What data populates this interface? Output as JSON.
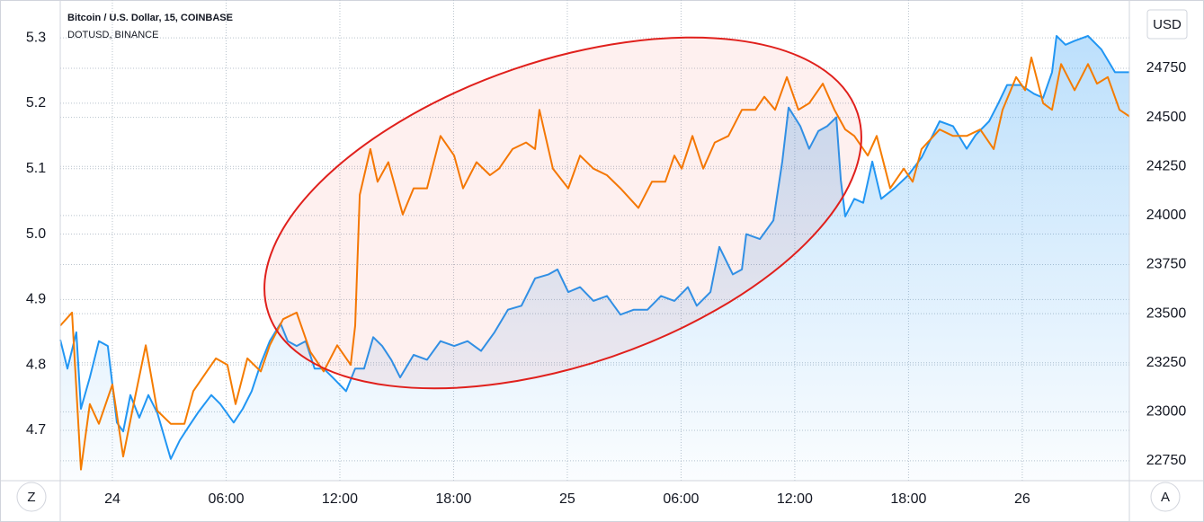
{
  "chart_data": {
    "type": "line",
    "legend": [
      "Bitcoin / U.S. Dollar, 15, COINBASE",
      "DOTUSD, BINANCE"
    ],
    "currency": "USD",
    "left_button": "Z",
    "right_button": "A",
    "xlim": [
      -2.75,
      53.65
    ],
    "xticks": [
      {
        "value": 0,
        "label": "24"
      },
      {
        "value": 6,
        "label": "06:00"
      },
      {
        "value": 12,
        "label": "12:00"
      },
      {
        "value": 18,
        "label": "18:00"
      },
      {
        "value": 24,
        "label": "25"
      },
      {
        "value": 30,
        "label": "06:00"
      },
      {
        "value": 36,
        "label": "12:00"
      },
      {
        "value": 42,
        "label": "18:00"
      },
      {
        "value": 48,
        "label": "26"
      }
    ],
    "ylim": [
      4.623,
      5.351
    ],
    "yticks": [
      4.7,
      4.8,
      4.9,
      {
        "value": 5,
        "label": "5.0"
      },
      5.1,
      5.2,
      5.3
    ],
    "y2lim": [
      22649,
      25075
    ],
    "y2ticks": [
      22750,
      23000,
      23250,
      23500,
      23750,
      24000,
      24250,
      24500,
      24750
    ],
    "grid": true,
    "series": [
      {
        "name": "Bitcoin / U.S. Dollar, 15, COINBASE",
        "color": "#2196f3",
        "axis": "y2",
        "area": true,
        "x": [
          -2.75,
          -2.37,
          -1.9,
          -1.66,
          -1.19,
          -0.71,
          -0.24,
          0.24,
          0.57,
          0.95,
          1.42,
          1.9,
          2.37,
          3.08,
          3.56,
          4.03,
          4.51,
          5.22,
          5.69,
          6.4,
          6.88,
          7.35,
          7.83,
          8.3,
          8.87,
          9.25,
          9.72,
          10.2,
          10.67,
          11.15,
          11.62,
          12.33,
          12.81,
          13.28,
          13.76,
          14.23,
          14.71,
          15.18,
          15.89,
          16.6,
          17.31,
          18.03,
          18.74,
          19.45,
          20.16,
          20.87,
          21.58,
          22.3,
          23.01,
          23.48,
          24.05,
          24.67,
          25.38,
          26.09,
          26.8,
          27.51,
          28.23,
          28.94,
          29.65,
          30.36,
          30.83,
          31.55,
          32.02,
          32.73,
          33.21,
          33.44,
          34.16,
          34.87,
          35.34,
          35.67,
          36.29,
          36.76,
          37.24,
          37.71,
          38.19,
          38.43,
          38.66,
          39.14,
          39.61,
          40.09,
          40.56,
          41.27,
          41.98,
          42.69,
          43.64,
          44.35,
          45.07,
          45.54,
          46.25,
          46.73,
          47.2,
          47.91,
          48.62,
          49.1,
          49.57,
          49.81,
          50.28,
          50.76,
          51.47,
          52.18,
          52.89,
          53.65
        ],
        "values": [
          23367,
          23220,
          23405,
          23015,
          23175,
          23360,
          23335,
          22945,
          22900,
          23085,
          22970,
          23085,
          22995,
          22760,
          22855,
          22925,
          22995,
          23085,
          23040,
          22945,
          23015,
          23105,
          23245,
          23360,
          23450,
          23360,
          23335,
          23360,
          23220,
          23220,
          23175,
          23105,
          23220,
          23220,
          23380,
          23335,
          23265,
          23175,
          23290,
          23265,
          23360,
          23335,
          23360,
          23310,
          23405,
          23520,
          23540,
          23680,
          23700,
          23725,
          23610,
          23635,
          23565,
          23590,
          23495,
          23520,
          23520,
          23590,
          23565,
          23635,
          23540,
          23610,
          23840,
          23700,
          23725,
          23905,
          23880,
          23975,
          24275,
          24550,
          24455,
          24340,
          24430,
          24455,
          24500,
          24180,
          23995,
          24085,
          24065,
          24275,
          24085,
          24140,
          24205,
          24295,
          24480,
          24455,
          24340,
          24410,
          24480,
          24570,
          24665,
          24665,
          24620,
          24600,
          24730,
          24915,
          24870,
          24890,
          24915,
          24845,
          24730,
          24730
        ]
      },
      {
        "name": "DOTUSD, BINANCE",
        "color": "#f57c00",
        "axis": "y",
        "x": [
          -2.75,
          -2.13,
          -1.66,
          -1.19,
          -0.71,
          0,
          0.57,
          1.19,
          1.76,
          2.37,
          3.08,
          3.8,
          4.27,
          4.98,
          5.46,
          6.07,
          6.5,
          7.12,
          7.83,
          8.3,
          9.01,
          9.72,
          10.44,
          11.15,
          11.86,
          12.57,
          12.81,
          13.05,
          13.61,
          13.99,
          14.56,
          15.32,
          15.89,
          16.6,
          17.31,
          18.03,
          18.5,
          19.21,
          19.92,
          20.4,
          21.11,
          21.82,
          22.3,
          22.53,
          23.24,
          24.05,
          24.67,
          25.38,
          26.09,
          26.8,
          27.75,
          28.46,
          29.17,
          29.65,
          30.03,
          30.6,
          31.17,
          31.78,
          32.5,
          33.21,
          33.92,
          34.39,
          34.96,
          35.58,
          36.19,
          36.76,
          37.48,
          38.09,
          38.66,
          39.14,
          39.85,
          40.32,
          41.03,
          41.75,
          42.22,
          42.69,
          43.64,
          44.35,
          45.07,
          45.78,
          46.49,
          46.96,
          47.68,
          48.15,
          48.48,
          49.1,
          49.57,
          50.05,
          50.76,
          51.47,
          51.94,
          52.51,
          53.13,
          53.65
        ],
        "values": [
          4.86,
          4.88,
          4.64,
          4.74,
          4.71,
          4.77,
          4.66,
          4.75,
          4.83,
          4.73,
          4.71,
          4.71,
          4.76,
          4.79,
          4.81,
          4.8,
          4.74,
          4.81,
          4.79,
          4.83,
          4.87,
          4.88,
          4.82,
          4.79,
          4.83,
          4.8,
          4.86,
          5.06,
          5.13,
          5.08,
          5.11,
          5.03,
          5.07,
          5.07,
          5.15,
          5.12,
          5.07,
          5.11,
          5.09,
          5.1,
          5.13,
          5.14,
          5.13,
          5.19,
          5.1,
          5.07,
          5.12,
          5.1,
          5.09,
          5.07,
          5.04,
          5.08,
          5.08,
          5.12,
          5.1,
          5.15,
          5.1,
          5.14,
          5.15,
          5.19,
          5.19,
          5.21,
          5.19,
          5.24,
          5.19,
          5.2,
          5.23,
          5.19,
          5.16,
          5.15,
          5.12,
          5.15,
          5.07,
          5.1,
          5.08,
          5.13,
          5.16,
          5.15,
          5.15,
          5.16,
          5.13,
          5.19,
          5.24,
          5.22,
          5.27,
          5.2,
          5.19,
          5.26,
          5.22,
          5.26,
          5.23,
          5.24,
          5.19,
          5.18
        ]
      }
    ]
  }
}
